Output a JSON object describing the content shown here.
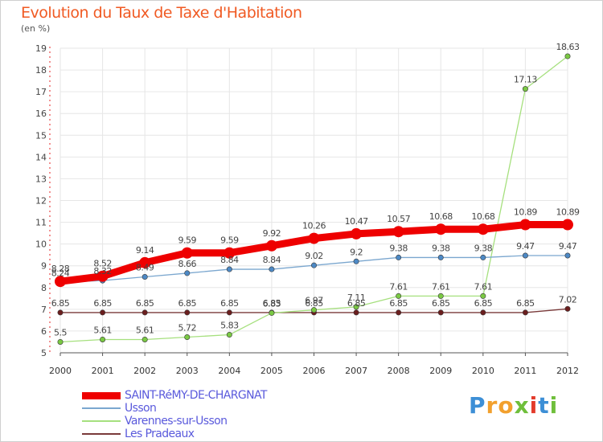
{
  "title": "Evolution du Taux de Taxe d'Habitation",
  "subtitle": "(en %)",
  "logo": {
    "text": "Proxiti",
    "letters": [
      "P",
      "r",
      "o",
      "x",
      "i",
      "t",
      "i"
    ],
    "colors": [
      "#3d8fd6",
      "#f2a02d",
      "#f2a02d",
      "#6fbf3b",
      "#e33b2b",
      "#3d8fd6",
      "#6fbf3b"
    ]
  },
  "chart_data": {
    "type": "line",
    "x": [
      "2000",
      "2001",
      "2002",
      "2003",
      "2004",
      "2005",
      "2006",
      "2007",
      "2008",
      "2009",
      "2010",
      "2011",
      "2012"
    ],
    "ylim": [
      5,
      19
    ],
    "yticks": [
      "5",
      "6",
      "7",
      "8",
      "9",
      "10",
      "11",
      "12",
      "13",
      "14",
      "15",
      "16",
      "17",
      "18",
      "19"
    ],
    "grid": true,
    "legend_position": "bottom-left",
    "series": [
      {
        "name": "SAINT-RéMY-DE-CHARGNAT",
        "color": "#ee0000",
        "marker": "#ee0000",
        "width": 9,
        "values": [
          8.28,
          8.52,
          9.14,
          9.59,
          9.59,
          9.92,
          10.26,
          10.47,
          10.57,
          10.68,
          10.68,
          10.89,
          10.89
        ],
        "labels": [
          "8.28",
          "8.52",
          "9.14",
          "9.59",
          "9.59",
          "9.92",
          "10.26",
          "10.47",
          "10.57",
          "10.68",
          "10.68",
          "10.89",
          "10.89"
        ]
      },
      {
        "name": "Usson",
        "color": "#7ba7cf",
        "marker": "#4d89c5",
        "width": 1.3,
        "values": [
          8.24,
          8.32,
          8.49,
          8.66,
          8.84,
          8.84,
          9.02,
          9.2,
          9.38,
          9.38,
          9.38,
          9.47,
          9.47
        ],
        "labels": [
          "8.24",
          "8.32",
          "8.49",
          "8.66",
          "8.84",
          "8.84",
          "9.02",
          "9.2",
          "9.38",
          "9.38",
          "9.38",
          "9.47",
          "9.47"
        ]
      },
      {
        "name": "Varennes-sur-Usson",
        "color": "#a6e07e",
        "marker": "#7ac943",
        "width": 1.3,
        "values": [
          5.5,
          5.61,
          5.61,
          5.72,
          5.83,
          6.83,
          6.97,
          7.11,
          7.61,
          7.61,
          7.61,
          17.13,
          18.63
        ],
        "labels": [
          "5.5",
          "5.61",
          "5.61",
          "5.72",
          "5.83",
          "6.83",
          "6.97",
          "7.11",
          "7.61",
          "7.61",
          "7.61",
          "17.13",
          "18.63"
        ]
      },
      {
        "name": "Les Pradeaux",
        "color": "#7a3a3a",
        "marker": "#6b1e1e",
        "width": 1.3,
        "values": [
          6.85,
          6.85,
          6.85,
          6.85,
          6.85,
          6.85,
          6.85,
          6.85,
          6.85,
          6.85,
          6.85,
          6.85,
          7.02
        ],
        "labels": [
          "6.85",
          "6.85",
          "6.85",
          "6.85",
          "6.85",
          "6.85",
          "6.85",
          "6.85",
          "6.85",
          "6.85",
          "6.85",
          "6.85",
          "7.02"
        ]
      }
    ]
  }
}
